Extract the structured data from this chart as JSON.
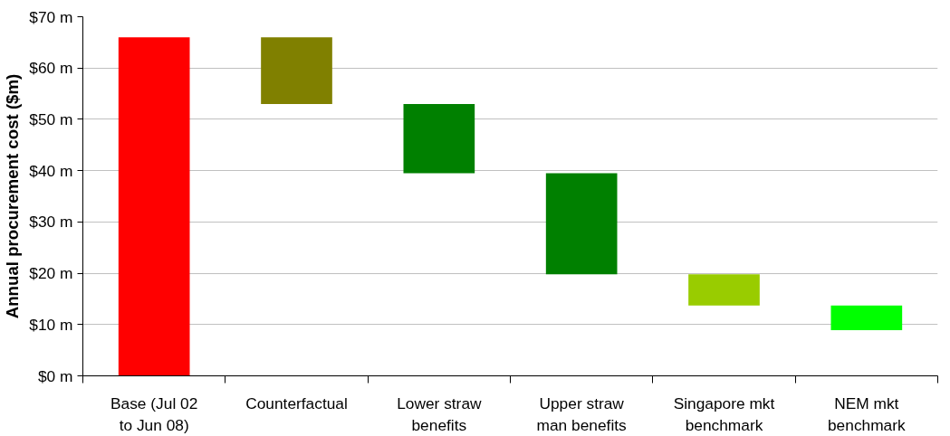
{
  "chart_data": {
    "type": "bar",
    "ylabel": "Annual procurement cost ($m)",
    "categories": [
      "Base (Jul 02 to Jun 08)",
      "Counterfactual",
      "Lower straw benefits",
      "Upper straw man benefits",
      "Singapore mkt benchmark",
      "NEM mkt benchmark"
    ],
    "values": [
      66,
      13,
      13.5,
      19.7,
      6.1,
      4.8
    ],
    "base": [
      0,
      53,
      39.5,
      19.8,
      13.7,
      8.9
    ],
    "colors": [
      "#ff0000",
      "#808000",
      "#008000",
      "#008000",
      "#99cc00",
      "#00ff00"
    ],
    "ylim": [
      0,
      70
    ],
    "yticks": [
      {
        "value": 0,
        "label": "$0 m"
      },
      {
        "value": 10,
        "label": "$10 m"
      },
      {
        "value": 20,
        "label": "$20 m"
      },
      {
        "value": 30,
        "label": "$30 m"
      },
      {
        "value": 40,
        "label": "$40 m"
      },
      {
        "value": 50,
        "label": "$50 m"
      },
      {
        "value": 60,
        "label": "$60 m"
      },
      {
        "value": 70,
        "label": "$70 m"
      }
    ],
    "grid": "y"
  }
}
